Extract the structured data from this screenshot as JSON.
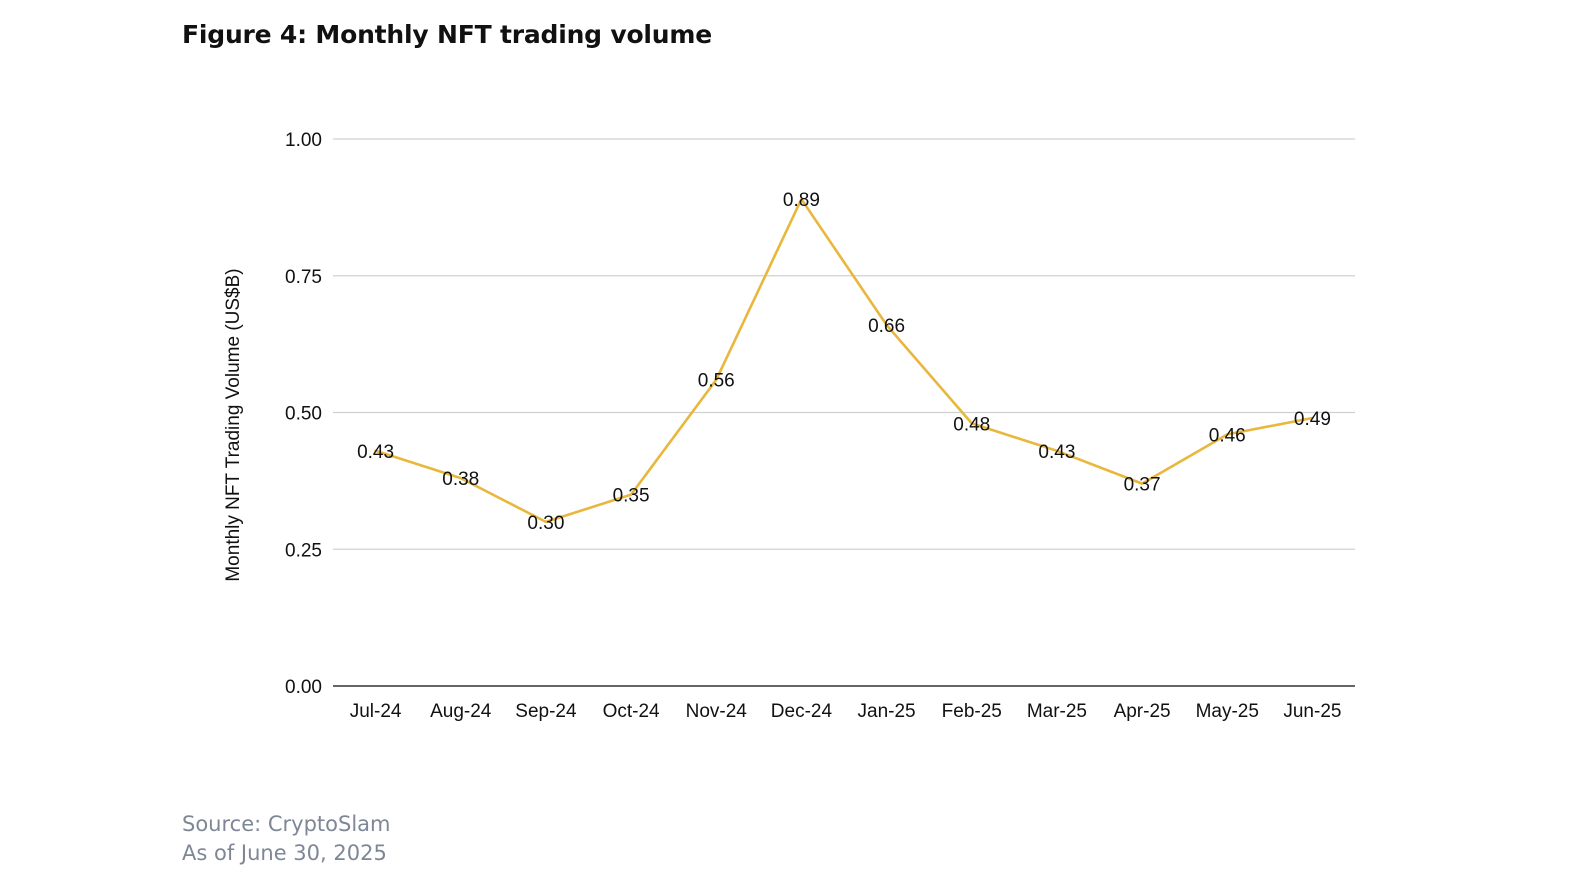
{
  "figure": {
    "title": "Figure 4: Monthly NFT trading volume",
    "source": "Source: CryptoSlam",
    "as_of": "As of June 30, 2025"
  },
  "colors": {
    "line": "#E8B73C",
    "grid": "#d0d0d0",
    "axis": "#333333",
    "text": "#111111",
    "source_text": "#7d8796"
  },
  "chart_data": {
    "type": "line",
    "title": "Figure 4: Monthly NFT trading volume",
    "xlabel": "",
    "ylabel": "Monthly NFT Trading Volume (US$B)",
    "categories": [
      "Jul-24",
      "Aug-24",
      "Sep-24",
      "Oct-24",
      "Nov-24",
      "Dec-24",
      "Jan-25",
      "Feb-25",
      "Mar-25",
      "Apr-25",
      "May-25",
      "Jun-25"
    ],
    "series": [
      {
        "name": "Monthly NFT Trading Volume",
        "values": [
          0.43,
          0.38,
          0.3,
          0.35,
          0.56,
          0.89,
          0.66,
          0.48,
          0.43,
          0.37,
          0.46,
          0.49
        ],
        "labels": [
          "0.43",
          "0.38",
          "0.30",
          "0.35",
          "0.56",
          "0.89",
          "0.66",
          "0.48",
          "0.43",
          "0.37",
          "0.46",
          "0.49"
        ]
      }
    ],
    "ylim": [
      0,
      1.0
    ],
    "yticks": [
      0,
      0.25,
      0.5,
      0.75,
      1.0
    ],
    "ytick_labels": [
      "0.00",
      "0.25",
      "0.50",
      "0.75",
      "1.00"
    ],
    "grid": true,
    "legend": "none"
  }
}
